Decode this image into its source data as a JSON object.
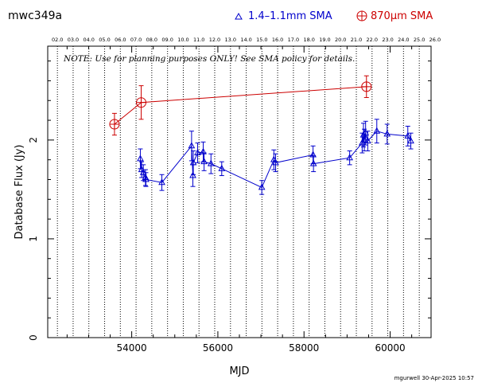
{
  "chart_data": {
    "type": "scatter",
    "source_name": "mwc349a",
    "footer": "mgurwell 30-Apr-2025 10:57",
    "note": "NOTE: Use for planning purposes ONLY!  See SMA policy for details.",
    "xlabel": "MJD",
    "ylabel": "Database Flux (Jy)",
    "xlim": [
      52050,
      60950
    ],
    "ylim": [
      0,
      2.95
    ],
    "x_ticks": [
      54000,
      56000,
      58000,
      60000
    ],
    "y_ticks": [
      0,
      1,
      2
    ],
    "top_axis": {
      "labels": [
        "02.0",
        "03.0",
        "04.0",
        "05.0",
        "06.0",
        "07.0",
        "08.0",
        "09.0",
        "10.0",
        "11.0",
        "12.0",
        "13.0",
        "14.0",
        "15.0",
        "16.0",
        "17.0",
        "18.0",
        "19.0",
        "20.0",
        "21.0",
        "22.0",
        "23.0",
        "24.0",
        "25.0",
        "26.0"
      ],
      "mjd": [
        52275,
        52640,
        53005,
        53371,
        53736,
        54101,
        54466,
        54832,
        55197,
        55562,
        55927,
        56293,
        56658,
        57023,
        57388,
        57754,
        58119,
        58484,
        58849,
        59215,
        59580,
        59945,
        60310,
        60676,
        61041
      ]
    },
    "legend": {
      "placement": "top-right"
    },
    "series": [
      {
        "name": "1.4–1.1mm SMA",
        "color": "#0000cc",
        "marker": "triangle",
        "points": [
          {
            "x": 54200,
            "y": 1.81,
            "err": 0.1
          },
          {
            "x": 54230,
            "y": 1.7,
            "err": 0.08
          },
          {
            "x": 54270,
            "y": 1.67,
            "err": 0.08
          },
          {
            "x": 54320,
            "y": 1.62,
            "err": 0.08
          },
          {
            "x": 54330,
            "y": 1.6,
            "err": 0.07
          },
          {
            "x": 54700,
            "y": 1.57,
            "err": 0.08
          },
          {
            "x": 55390,
            "y": 1.94,
            "err": 0.15
          },
          {
            "x": 55420,
            "y": 1.64,
            "err": 0.11
          },
          {
            "x": 55430,
            "y": 1.77,
            "err": 0.12
          },
          {
            "x": 55530,
            "y": 1.87,
            "err": 0.1
          },
          {
            "x": 55660,
            "y": 1.88,
            "err": 0.1
          },
          {
            "x": 55680,
            "y": 1.78,
            "err": 0.09
          },
          {
            "x": 55840,
            "y": 1.76,
            "err": 0.1
          },
          {
            "x": 56090,
            "y": 1.71,
            "err": 0.07
          },
          {
            "x": 57020,
            "y": 1.52,
            "err": 0.07
          },
          {
            "x": 57300,
            "y": 1.8,
            "err": 0.1
          },
          {
            "x": 57340,
            "y": 1.77,
            "err": 0.09
          },
          {
            "x": 58210,
            "y": 1.85,
            "err": 0.09
          },
          {
            "x": 58220,
            "y": 1.76,
            "err": 0.08
          },
          {
            "x": 59060,
            "y": 1.82,
            "err": 0.07
          },
          {
            "x": 59350,
            "y": 1.97,
            "err": 0.1
          },
          {
            "x": 59380,
            "y": 2.05,
            "err": 0.12
          },
          {
            "x": 59400,
            "y": 2.0,
            "err": 0.11
          },
          {
            "x": 59430,
            "y": 2.07,
            "err": 0.12
          },
          {
            "x": 59480,
            "y": 1.99,
            "err": 0.1
          },
          {
            "x": 59690,
            "y": 2.09,
            "err": 0.12
          },
          {
            "x": 59930,
            "y": 2.06,
            "err": 0.1
          },
          {
            "x": 60410,
            "y": 2.04,
            "err": 0.1
          },
          {
            "x": 60480,
            "y": 1.99,
            "err": 0.08
          }
        ]
      },
      {
        "name": "870μm SMA",
        "color": "#cc0000",
        "marker": "circle-plus",
        "points": [
          {
            "x": 53600,
            "y": 2.16,
            "err": 0.11
          },
          {
            "x": 54220,
            "y": 2.38,
            "err": 0.17
          },
          {
            "x": 59450,
            "y": 2.54,
            "err": 0.11
          }
        ]
      }
    ]
  }
}
